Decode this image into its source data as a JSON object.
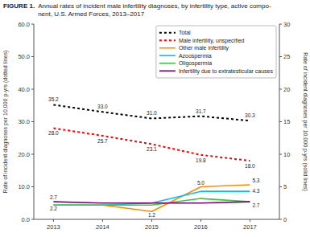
{
  "chart_data": {
    "type": "line",
    "title": "FIGURE 1.",
    "subtitle": "Annual rates of incident male infertility diagnoses, by infertility type, active compo-\nnent, U.S. Armed Forces, 2013–2017",
    "x": [
      2013,
      2014,
      2015,
      2016,
      2017
    ],
    "xlim": [
      2012.6,
      2017.6
    ],
    "xticks": [
      2013,
      2014,
      2015,
      2016,
      2017
    ],
    "ylim": [
      0,
      60
    ],
    "yticks": [
      {
        "value": 0,
        "label": "0.0"
      },
      {
        "value": 10,
        "label": "10.0"
      },
      {
        "value": 20,
        "label": "20.0"
      },
      {
        "value": 30,
        "label": "30.0"
      },
      {
        "value": 40,
        "label": "40.0"
      },
      {
        "value": 50,
        "label": "50.0"
      },
      {
        "value": 60,
        "label": "60.0"
      }
    ],
    "y2lim": [
      0,
      30
    ],
    "y2ticks": [
      0,
      5,
      10,
      15,
      20,
      25,
      30
    ],
    "ylabel": "Rate of incident diagnoses per 10,000 p-yrs (dotted lines)",
    "y2label": "Rate of incident diagnoses per 10,000 p-yrs (solid lines)",
    "grid": false,
    "legend": "upper right",
    "series": [
      {
        "name": "Total",
        "color": "#000000",
        "axis": "y",
        "line_style": "dotted",
        "values": [
          35.2,
          33.0,
          31.0,
          31.7,
          30.3
        ],
        "data_labels": true,
        "value_labels": [
          "35.2",
          "33.0",
          "31.0",
          "31.7",
          "30.3"
        ]
      },
      {
        "name": "Male infertility, unspecified",
        "color": "#ff0000",
        "axis": "y",
        "line_style": "dotted",
        "values": [
          28.0,
          25.7,
          23.1,
          19.8,
          18.0
        ],
        "data_labels": true,
        "value_labels": [
          "28.0",
          "25.7",
          "23.1",
          "19.8",
          "18.0"
        ]
      },
      {
        "name": "Other male infertility",
        "color": "#ff8c00",
        "axis": "y2",
        "line_style": "solid",
        "values": [
          2.2,
          2.2,
          1.2,
          5.0,
          5.3
        ]
      },
      {
        "name": "Azoospermia",
        "color": "#00bfff",
        "axis": "y2",
        "line_style": "solid",
        "values": [
          2.2,
          2.2,
          2.5,
          4.3,
          4.3
        ]
      },
      {
        "name": "Oligospermia",
        "color": "#32cd32",
        "axis": "y2",
        "line_style": "solid",
        "values": [
          2.2,
          2.2,
          2.2,
          3.2,
          2.7
        ]
      },
      {
        "name": "Infertility due to extratesticular causes",
        "color": "#800080",
        "axis": "y2",
        "line_style": "solid",
        "values": [
          2.7,
          2.5,
          2.5,
          2.5,
          2.7
        ]
      }
    ],
    "annotations": [
      {
        "text": "2.2",
        "x": 2013,
        "y": 2.2,
        "axis": "y2"
      },
      {
        "text": "1.2",
        "x": 2015,
        "y": 1.2,
        "axis": "y2"
      },
      {
        "text": "5.0",
        "x": 2016,
        "y": 5.0,
        "axis": "y2"
      },
      {
        "text": "5.3",
        "x": 2017,
        "y": 5.3,
        "axis": "y2"
      },
      {
        "text": "4.3",
        "x": 2017,
        "y": 4.3,
        "axis": "y2"
      },
      {
        "text": "2.7",
        "x": 2017,
        "y": 2.7,
        "axis": "y2"
      },
      {
        "text": "2.7",
        "x": 2013,
        "y": 2.7,
        "axis": "y2"
      }
    ]
  }
}
